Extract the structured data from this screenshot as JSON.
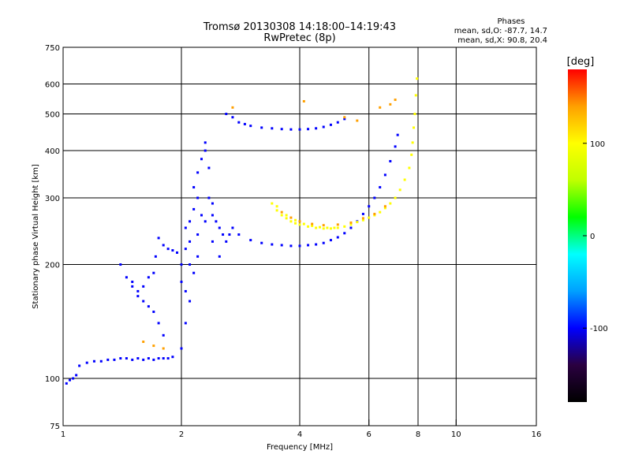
{
  "chart_data": {
    "type": "scatter",
    "title": "Tromsø 20130308 14:18:00–14:19:43",
    "subtitle": "RwPretec (8p)",
    "xlabel": "Frequency [MHz]",
    "ylabel": "Stationary phase Virtual Height [km]",
    "xscale": "log",
    "yscale": "log",
    "xlim": [
      1,
      16
    ],
    "ylim": [
      75,
      750
    ],
    "x_ticks": [
      "1",
      "2",
      "4",
      "6",
      "8",
      "10",
      "16"
    ],
    "x_tick_values": [
      1,
      2,
      4,
      6,
      8,
      10,
      16
    ],
    "y_ticks": [
      "75",
      "100",
      "200",
      "300",
      "400",
      "500",
      "600",
      "750"
    ],
    "y_tick_values": [
      75,
      100,
      200,
      300,
      400,
      500,
      600,
      750
    ],
    "grid": true,
    "grid_x_values": [
      2,
      4,
      6,
      8,
      10
    ],
    "grid_y_values": [
      100,
      200,
      300,
      400,
      500,
      600
    ],
    "stats": {
      "heading": "Phases",
      "line1": "mean, sd,O: -87.7, 14.7",
      "line2": "mean, sd,X:  90.8, 20.4"
    },
    "colorbar": {
      "label": "[deg]",
      "range": [
        -180,
        180
      ],
      "ticks": [
        "100",
        "0",
        "-100"
      ],
      "tick_values": [
        100,
        0,
        -100
      ],
      "colors": [
        "#000000",
        "#2a0040",
        "#0000ff",
        "#00a0ff",
        "#00ffff",
        "#00ff00",
        "#c0ff00",
        "#ffff00",
        "#ffa000",
        "#ff0000"
      ]
    },
    "series": [
      {
        "phase": -100,
        "points": [
          [
            1.02,
            97
          ],
          [
            1.04,
            99
          ],
          [
            1.06,
            100
          ],
          [
            1.08,
            102
          ],
          [
            1.1,
            108
          ],
          [
            1.15,
            110
          ],
          [
            1.2,
            111
          ],
          [
            1.25,
            111
          ],
          [
            1.3,
            112
          ],
          [
            1.35,
            112
          ],
          [
            1.4,
            113
          ],
          [
            1.45,
            113
          ],
          [
            1.5,
            112
          ],
          [
            1.55,
            113
          ],
          [
            1.6,
            112
          ],
          [
            1.65,
            113
          ],
          [
            1.7,
            112
          ],
          [
            1.75,
            113
          ],
          [
            1.8,
            113
          ],
          [
            1.85,
            113
          ],
          [
            1.9,
            114
          ],
          [
            1.4,
            200
          ],
          [
            1.45,
            185
          ],
          [
            1.5,
            175
          ],
          [
            1.55,
            165
          ],
          [
            1.6,
            160
          ],
          [
            1.65,
            155
          ],
          [
            1.7,
            150
          ],
          [
            1.75,
            140
          ],
          [
            1.8,
            130
          ],
          [
            1.5,
            180
          ],
          [
            1.55,
            170
          ],
          [
            1.6,
            175
          ],
          [
            1.65,
            185
          ],
          [
            1.7,
            190
          ],
          [
            1.72,
            210
          ],
          [
            1.75,
            235
          ],
          [
            1.8,
            225
          ],
          [
            1.85,
            220
          ],
          [
            1.9,
            218
          ],
          [
            1.95,
            215
          ],
          [
            2.0,
            180
          ],
          [
            2.0,
            200
          ],
          [
            2.05,
            220
          ],
          [
            2.05,
            250
          ],
          [
            2.1,
            260
          ],
          [
            2.1,
            230
          ],
          [
            2.15,
            280
          ],
          [
            2.15,
            320
          ],
          [
            2.2,
            350
          ],
          [
            2.2,
            300
          ],
          [
            2.25,
            270
          ],
          [
            2.25,
            380
          ],
          [
            2.3,
            400
          ],
          [
            2.3,
            420
          ],
          [
            2.35,
            360
          ],
          [
            2.35,
            300
          ],
          [
            2.4,
            290
          ],
          [
            2.4,
            270
          ],
          [
            2.45,
            260
          ],
          [
            2.5,
            250
          ],
          [
            2.55,
            240
          ],
          [
            2.6,
            230
          ],
          [
            2.65,
            240
          ],
          [
            2.7,
            250
          ],
          [
            2.0,
            120
          ],
          [
            2.05,
            140
          ],
          [
            2.1,
            160
          ],
          [
            2.15,
            190
          ],
          [
            2.2,
            210
          ],
          [
            2.05,
            170
          ],
          [
            2.1,
            200
          ],
          [
            2.2,
            240
          ],
          [
            2.3,
            260
          ],
          [
            2.4,
            230
          ],
          [
            2.5,
            210
          ],
          [
            2.6,
            500
          ],
          [
            2.7,
            490
          ],
          [
            2.8,
            475
          ],
          [
            2.9,
            470
          ],
          [
            3.0,
            465
          ],
          [
            3.2,
            460
          ],
          [
            3.4,
            458
          ],
          [
            3.6,
            456
          ],
          [
            3.8,
            455
          ],
          [
            4.0,
            455
          ],
          [
            4.2,
            456
          ],
          [
            4.4,
            458
          ],
          [
            4.6,
            462
          ],
          [
            4.8,
            468
          ],
          [
            5.0,
            475
          ],
          [
            5.2,
            485
          ],
          [
            2.8,
            240
          ],
          [
            3.0,
            232
          ],
          [
            3.2,
            228
          ],
          [
            3.4,
            226
          ],
          [
            3.6,
            225
          ],
          [
            3.8,
            224
          ],
          [
            4.0,
            224
          ],
          [
            4.2,
            225
          ],
          [
            4.4,
            226
          ],
          [
            4.6,
            228
          ],
          [
            4.8,
            232
          ],
          [
            5.0,
            236
          ],
          [
            5.2,
            242
          ],
          [
            5.4,
            250
          ],
          [
            5.6,
            260
          ],
          [
            5.8,
            272
          ],
          [
            6.0,
            285
          ],
          [
            6.2,
            300
          ],
          [
            6.4,
            320
          ],
          [
            6.6,
            345
          ],
          [
            6.8,
            375
          ],
          [
            7.0,
            410
          ],
          [
            7.1,
            440
          ]
        ]
      },
      {
        "phase": 100,
        "points": [
          [
            3.4,
            290
          ],
          [
            3.5,
            278
          ],
          [
            3.6,
            270
          ],
          [
            3.7,
            265
          ],
          [
            3.8,
            260
          ],
          [
            3.9,
            257
          ],
          [
            4.0,
            255
          ],
          [
            4.2,
            252
          ],
          [
            4.4,
            250
          ],
          [
            4.6,
            249
          ],
          [
            4.8,
            249
          ],
          [
            5.0,
            250
          ],
          [
            5.2,
            252
          ],
          [
            5.4,
            255
          ],
          [
            5.6,
            259
          ],
          [
            5.8,
            262
          ],
          [
            6.0,
            266
          ],
          [
            6.2,
            270
          ],
          [
            6.4,
            275
          ],
          [
            6.6,
            282
          ],
          [
            6.8,
            290
          ],
          [
            7.0,
            300
          ],
          [
            7.2,
            315
          ],
          [
            7.4,
            335
          ],
          [
            7.6,
            360
          ],
          [
            7.7,
            390
          ],
          [
            7.75,
            420
          ],
          [
            7.8,
            460
          ],
          [
            7.85,
            500
          ],
          [
            7.9,
            560
          ],
          [
            7.95,
            620
          ],
          [
            3.5,
            285
          ],
          [
            3.7,
            270
          ],
          [
            3.9,
            262
          ],
          [
            4.1,
            256
          ],
          [
            4.3,
            253
          ],
          [
            4.5,
            251
          ],
          [
            4.7,
            250
          ],
          [
            4.9,
            250
          ]
        ]
      },
      {
        "phase": 140,
        "points": [
          [
            3.6,
            275
          ],
          [
            3.8,
            266
          ],
          [
            4.0,
            260
          ],
          [
            4.3,
            256
          ],
          [
            4.6,
            254
          ],
          [
            5.0,
            255
          ],
          [
            5.4,
            258
          ],
          [
            5.8,
            265
          ],
          [
            6.2,
            272
          ],
          [
            6.6,
            285
          ],
          [
            5.2,
            490
          ],
          [
            5.6,
            480
          ],
          [
            6.4,
            520
          ],
          [
            6.8,
            530
          ],
          [
            7.0,
            545
          ],
          [
            1.6,
            125
          ],
          [
            1.7,
            122
          ],
          [
            1.8,
            120
          ],
          [
            2.7,
            520
          ],
          [
            4.1,
            540
          ]
        ]
      }
    ]
  }
}
